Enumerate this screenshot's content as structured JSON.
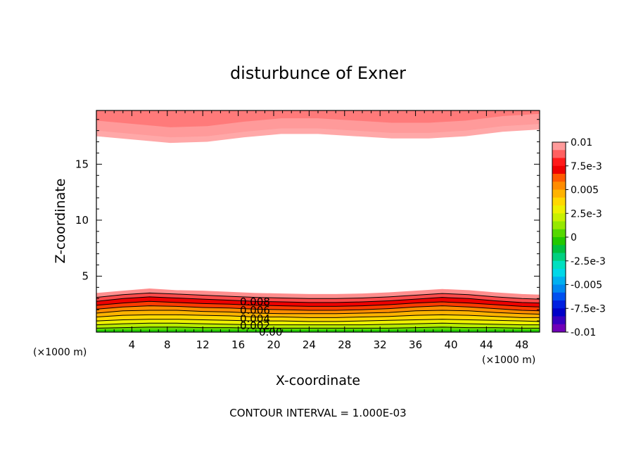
{
  "chart_data": {
    "type": "contour",
    "title": "disturbunce of Exner",
    "xlabel": "X-coordinate",
    "ylabel": "Z-coordinate",
    "x_unit_left": "(×1000 m)",
    "x_unit_right": "(×1000 m)",
    "xlim": [
      0,
      50
    ],
    "ylim": [
      0,
      19.8
    ],
    "x_ticks": [
      4,
      8,
      12,
      16,
      20,
      24,
      28,
      32,
      36,
      40,
      44,
      48
    ],
    "y_ticks": [
      5,
      10,
      15
    ],
    "footer": "CONTOUR INTERVAL = 1.000E-03",
    "contour_interval": 0.001,
    "contour_labels": [
      "0.008",
      "0.006",
      "0.004",
      "0.002",
      "0.00"
    ],
    "colorbar": {
      "labels": [
        "0.01",
        "7.5e-3",
        "0.005",
        "2.5e-3",
        "0",
        "-2.5e-3",
        "-0.005",
        "-7.5e-3",
        "-0.01"
      ],
      "min": -0.01,
      "max": 0.01,
      "colors_top_to_bottom": [
        "#ff9a9a",
        "#ff6060",
        "#ff1a1a",
        "#ee0000",
        "#ff5a00",
        "#ff8c00",
        "#ffb300",
        "#ffd800",
        "#eef000",
        "#c8f000",
        "#96e800",
        "#55d800",
        "#22c800",
        "#00c040",
        "#00d080",
        "#00e0c0",
        "#00d8e8",
        "#00b0f0",
        "#0088f0",
        "#0050f0",
        "#0020e0",
        "#0000c8",
        "#3800c0",
        "#7000b8"
      ]
    },
    "upper_band": {
      "value": "0.01",
      "colors": [
        "#ff9a9a",
        "#ff7a7a",
        "#ffa8a8"
      ],
      "lower_edge_z": [
        18.0,
        17.7,
        17.4,
        17.5,
        17.9,
        18.2,
        18.2,
        18.0,
        17.8,
        17.8,
        18.0,
        18.4,
        18.6
      ]
    },
    "lower_bands": {
      "x_samples": [
        0,
        3,
        6,
        9,
        12,
        15,
        18,
        21,
        24,
        27,
        30,
        33,
        36,
        39,
        42,
        45,
        48,
        50
      ],
      "surface_heights_top_to_bottom": [
        [
          3.5,
          3.7,
          3.9,
          3.75,
          3.7,
          3.6,
          3.5,
          3.45,
          3.4,
          3.4,
          3.45,
          3.55,
          3.7,
          3.85,
          3.75,
          3.55,
          3.4,
          3.35
        ],
        [
          3.1,
          3.35,
          3.5,
          3.4,
          3.3,
          3.2,
          3.1,
          3.05,
          3.0,
          3.0,
          3.05,
          3.15,
          3.3,
          3.45,
          3.35,
          3.15,
          3.0,
          2.95
        ],
        [
          2.75,
          3.0,
          3.15,
          3.05,
          2.95,
          2.85,
          2.75,
          2.7,
          2.65,
          2.65,
          2.7,
          2.8,
          2.95,
          3.1,
          3.0,
          2.8,
          2.65,
          2.6
        ],
        [
          2.4,
          2.6,
          2.75,
          2.65,
          2.55,
          2.5,
          2.4,
          2.35,
          2.3,
          2.3,
          2.35,
          2.45,
          2.6,
          2.7,
          2.6,
          2.45,
          2.3,
          2.25
        ],
        [
          2.05,
          2.25,
          2.35,
          2.3,
          2.2,
          2.15,
          2.05,
          2.0,
          1.95,
          1.95,
          2.0,
          2.1,
          2.25,
          2.35,
          2.25,
          2.1,
          1.95,
          1.9
        ],
        [
          1.7,
          1.9,
          1.95,
          1.95,
          1.85,
          1.8,
          1.7,
          1.65,
          1.65,
          1.65,
          1.7,
          1.75,
          1.9,
          1.95,
          1.9,
          1.75,
          1.65,
          1.6
        ],
        [
          1.35,
          1.5,
          1.55,
          1.55,
          1.5,
          1.45,
          1.35,
          1.35,
          1.3,
          1.3,
          1.35,
          1.4,
          1.5,
          1.55,
          1.5,
          1.4,
          1.3,
          1.3
        ],
        [
          1.0,
          1.1,
          1.15,
          1.15,
          1.1,
          1.05,
          1.0,
          1.0,
          0.95,
          0.95,
          1.0,
          1.05,
          1.1,
          1.15,
          1.1,
          1.05,
          1.0,
          0.95
        ],
        [
          0.65,
          0.75,
          0.8,
          0.8,
          0.75,
          0.7,
          0.65,
          0.65,
          0.65,
          0.65,
          0.65,
          0.7,
          0.75,
          0.8,
          0.75,
          0.7,
          0.65,
          0.65
        ],
        [
          0.35,
          0.4,
          0.45,
          0.45,
          0.4,
          0.4,
          0.35,
          0.35,
          0.35,
          0.35,
          0.35,
          0.35,
          0.4,
          0.45,
          0.4,
          0.4,
          0.35,
          0.35
        ]
      ],
      "colors_top_to_bottom": [
        "#ff8e8e",
        "#ff4a4a",
        "#ee0000",
        "#ff3c00",
        "#ff8c00",
        "#ffb300",
        "#ffd800",
        "#eef000",
        "#b8ec00",
        "#66d800",
        "#22c800"
      ]
    }
  }
}
